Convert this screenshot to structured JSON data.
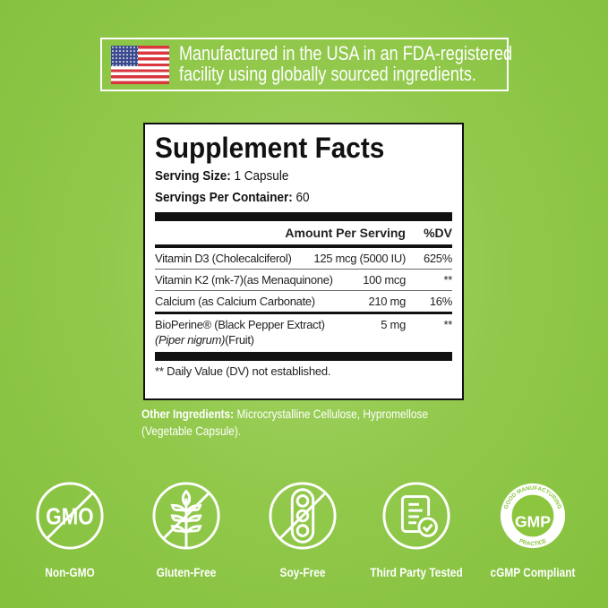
{
  "banner": {
    "text_line1": "Manufactured in the USA in an FDA-registered",
    "text_line2": "facility using globally sourced ingredients.",
    "flag_icon": "us-flag-icon"
  },
  "facts": {
    "title": "Supplement Facts",
    "serving_size_label": "Serving Size:",
    "serving_size_value": " 1 Capsule",
    "servings_label": "Servings Per Container:",
    "servings_value": " 60",
    "header_amount": "Amount Per Serving",
    "header_dv": "%DV",
    "rows": [
      {
        "name": "Vitamin D3 (Cholecalciferol)",
        "amount": "125 mcg (5000 IU)",
        "dv": "625%"
      },
      {
        "name": "Vitamin K2 (mk-7)(as Menaquinone)",
        "amount": "100 mcg",
        "dv": "**"
      },
      {
        "name": "Calcium (as Calcium Carbonate)",
        "amount": "210 mg",
        "dv": "16%"
      },
      {
        "name": "BioPerine® (Black Pepper Extract)",
        "name_italic": "(Piper nigrum)",
        "name_suffix": "(Fruit)",
        "amount": "5 mg",
        "dv": "**"
      }
    ],
    "footnote": "** Daily Value (DV) not established."
  },
  "other_ingredients": {
    "label": "Other Ingredients:",
    "text": " Microcrystalline Cellulose, Hypromellose (Vegetable Capsule)."
  },
  "badges": [
    {
      "label": "Non-GMO",
      "icon": "non-gmo-icon",
      "icon_text": "GMO"
    },
    {
      "label": "Gluten-Free",
      "icon": "gluten-free-icon"
    },
    {
      "label": "Soy-Free",
      "icon": "soy-free-icon"
    },
    {
      "label": "Third Party Tested",
      "icon": "third-party-tested-icon"
    },
    {
      "label": "cGMP Compliant",
      "icon": "gmp-seal-icon",
      "icon_text": "GMP",
      "seal_top": "GOOD MANUFACTURING",
      "seal_bottom": "PRACTICE"
    }
  ],
  "colors": {
    "background": "#8cc63f",
    "text": "#ffffff",
    "panel_border": "#111111"
  }
}
